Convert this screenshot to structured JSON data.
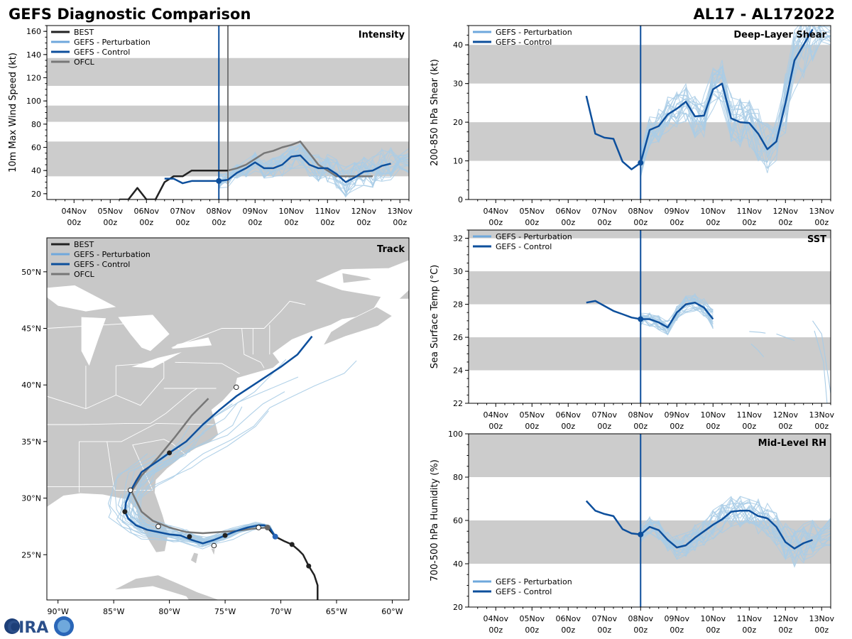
{
  "figure": {
    "title_left": "GEFS Diagnostic Comparison",
    "title_right": "AL17 - AL172022",
    "logo_text": "CIRA",
    "date_ticks": [
      {
        "day": "04Nov",
        "hour": "00z"
      },
      {
        "day": "05Nov",
        "hour": "00z"
      },
      {
        "day": "06Nov",
        "hour": "00z"
      },
      {
        "day": "07Nov",
        "hour": "00z"
      },
      {
        "day": "08Nov",
        "hour": "00z"
      },
      {
        "day": "09Nov",
        "hour": "00z"
      },
      {
        "day": "10Nov",
        "hour": "00z"
      },
      {
        "day": "11Nov",
        "hour": "00z"
      },
      {
        "day": "12Nov",
        "hour": "00z"
      },
      {
        "day": "13Nov",
        "hour": "00z"
      }
    ]
  },
  "chart_data": [
    {
      "id": "intensity",
      "type": "line",
      "title": "Intensity",
      "ylabel": "10m Max Wind Speed (kt)",
      "xlabel": "",
      "x_units": "days since 04Nov 00z",
      "xlim": [
        -0.75,
        9.25
      ],
      "ylim": [
        15,
        165
      ],
      "yticks": [
        20,
        40,
        60,
        80,
        100,
        120,
        140,
        160
      ],
      "bands": [
        [
          35,
          65
        ],
        [
          82,
          96
        ],
        [
          113,
          137
        ]
      ],
      "init_line_x": 4.0,
      "ofcl_line_x": 4.25,
      "legend": [
        "BEST",
        "GEFS - Perturbation",
        "GEFS - Control",
        "OFCL"
      ],
      "series": [
        {
          "name": "BEST",
          "color": "#222222",
          "x": [
            1.25,
            1.5,
            1.75,
            2,
            2.25,
            2.5,
            2.75,
            3,
            3.25,
            3.5,
            3.75,
            4,
            4.25
          ],
          "y": [
            15,
            15,
            25,
            15,
            15,
            30,
            35,
            35,
            40,
            40,
            40,
            40,
            40
          ]
        },
        {
          "name": "GEFS - Control",
          "color": "#0d4f9c",
          "x": [
            2.5,
            2.75,
            3,
            3.25,
            3.5,
            3.75,
            4,
            4.25,
            4.5,
            4.75,
            5,
            5.25,
            5.5,
            5.75,
            6,
            6.25,
            6.5,
            6.75,
            7,
            7.25,
            7.5,
            7.75,
            8,
            8.25,
            8.5,
            8.75
          ],
          "y": [
            33,
            33,
            29,
            31,
            31,
            31,
            31,
            32,
            38,
            42,
            47,
            42,
            42,
            45,
            52,
            53,
            45,
            42,
            42,
            37,
            30,
            34,
            39,
            40,
            44,
            46
          ]
        },
        {
          "name": "OFCL",
          "color": "#777777",
          "x": [
            4,
            4.25,
            4.5,
            4.75,
            5,
            5.25,
            5.5,
            5.75,
            6,
            6.25,
            6.5,
            6.75,
            7,
            7.25,
            7.5,
            7.75,
            8,
            8.25
          ],
          "y": [
            40,
            40,
            42,
            45,
            50,
            55,
            57,
            60,
            62,
            65,
            55,
            45,
            40,
            35,
            35,
            35,
            35,
            35
          ]
        }
      ]
    },
    {
      "id": "shear",
      "type": "line",
      "title": "Deep-Layer Shear",
      "ylabel": "200-850 hPa Shear (kt)",
      "xlabel": "",
      "x_units": "days since 04Nov 00z",
      "xlim": [
        -0.75,
        9.25
      ],
      "ylim": [
        0,
        45
      ],
      "yticks": [
        0,
        10,
        20,
        30,
        40
      ],
      "bands": [
        [
          10,
          20
        ],
        [
          30,
          40
        ]
      ],
      "init_line_x": 4.0,
      "legend": [
        "GEFS - Perturbation",
        "GEFS - Control"
      ],
      "series": [
        {
          "name": "GEFS - Control",
          "color": "#0d4f9c",
          "x": [
            2.5,
            2.75,
            3,
            3.25,
            3.5,
            3.75,
            4,
            4.25,
            4.5,
            4.75,
            5,
            5.25,
            5.5,
            5.75,
            6,
            6.25,
            6.5,
            6.75,
            7,
            7.25,
            7.5,
            7.75,
            8,
            8.25,
            8.5,
            8.75
          ],
          "y": [
            26.8,
            17,
            16,
            15.7,
            9.8,
            7.8,
            9.5,
            18,
            19,
            22,
            23.5,
            25.3,
            21.5,
            21.7,
            28.5,
            30,
            21,
            20,
            19.8,
            17,
            13,
            15,
            25,
            36,
            40,
            44
          ]
        }
      ]
    },
    {
      "id": "sst",
      "type": "line",
      "title": "SST",
      "ylabel": "Sea Surface Temp (°C)",
      "xlabel": "",
      "x_units": "days since 04Nov 00z",
      "xlim": [
        -0.75,
        9.25
      ],
      "ylim": [
        22,
        32.5
      ],
      "yticks": [
        22,
        24,
        26,
        28,
        30,
        32
      ],
      "bands": [
        [
          24,
          26
        ],
        [
          28,
          30
        ],
        [
          32,
          32.5
        ]
      ],
      "init_line_x": 4.0,
      "legend": [
        "GEFS - Perturbation",
        "GEFS - Control"
      ],
      "series": [
        {
          "name": "GEFS - Control",
          "color": "#0d4f9c",
          "x": [
            2.5,
            2.75,
            3,
            3.25,
            3.5,
            3.75,
            4,
            4.25,
            4.5,
            4.75,
            5,
            5.25,
            5.5,
            5.75,
            6
          ],
          "y": [
            28.1,
            28.2,
            27.9,
            27.6,
            27.4,
            27.2,
            27.1,
            27.1,
            26.9,
            26.6,
            27.5,
            28,
            28.1,
            27.8,
            27.1
          ]
        }
      ]
    },
    {
      "id": "rh",
      "type": "line",
      "title": "Mid-Level RH",
      "ylabel": "700-500 hPa Humidity (%)",
      "xlabel": "",
      "x_units": "days since 04Nov 00z",
      "xlim": [
        -0.75,
        9.25
      ],
      "ylim": [
        20,
        100
      ],
      "yticks": [
        20,
        40,
        60,
        80,
        100
      ],
      "bands": [
        [
          40,
          60
        ],
        [
          80,
          100
        ]
      ],
      "init_line_x": 4.0,
      "legend": [
        "GEFS - Perturbation",
        "GEFS - Control"
      ],
      "series": [
        {
          "name": "GEFS - Control",
          "color": "#0d4f9c",
          "x": [
            2.5,
            2.75,
            3,
            3.25,
            3.5,
            3.75,
            4,
            4.25,
            4.5,
            4.75,
            5,
            5.25,
            5.5,
            5.75,
            6,
            6.25,
            6.5,
            6.75,
            7,
            7.25,
            7.5,
            7.75,
            8,
            8.25,
            8.5,
            8.75
          ],
          "y": [
            69,
            64.5,
            63,
            62,
            56,
            54,
            53.5,
            57,
            55.5,
            51,
            47.5,
            48.5,
            52,
            55,
            58,
            60.5,
            64,
            64.5,
            64.5,
            62,
            61,
            57,
            50,
            47,
            49.5,
            51
          ]
        }
      ]
    },
    {
      "id": "track",
      "type": "scatter",
      "title": "Track",
      "xlabel": "",
      "ylabel": "",
      "x_units": "degrees longitude (negative = W)",
      "y_units": "degrees latitude (N)",
      "xlim": [
        -91,
        -58.5
      ],
      "ylim": [
        21,
        53
      ],
      "xtick_labels": [
        "90°W",
        "85°W",
        "80°W",
        "75°W",
        "70°W",
        "65°W",
        "60°W"
      ],
      "xtick_values": [
        -90,
        -85,
        -80,
        -75,
        -70,
        -65,
        -60
      ],
      "ytick_labels": [
        "25°N",
        "30°N",
        "35°N",
        "40°N",
        "45°N",
        "50°N"
      ],
      "ytick_values": [
        25,
        30,
        35,
        40,
        45,
        50
      ],
      "legend": [
        "BEST",
        "GEFS - Perturbation",
        "GEFS - Control",
        "OFCL"
      ],
      "series": [
        {
          "name": "BEST",
          "color": "#222222",
          "lon": [
            -66.7,
            -66.7,
            -67,
            -67.5,
            -68,
            -68.4,
            -69,
            -69.7,
            -70.5,
            -71.2
          ],
          "lat": [
            20.8,
            22.3,
            23.2,
            24,
            25,
            25.4,
            25.9,
            26.2,
            26.6,
            27.4
          ]
        },
        {
          "name": "GEFS - Control",
          "color": "#0d4f9c",
          "lon": [
            -70.5,
            -71,
            -71.5,
            -72,
            -73,
            -74,
            -75,
            -76,
            -77,
            -78,
            -79,
            -80,
            -81,
            -82,
            -83,
            -83.7,
            -84,
            -83.9,
            -83.5,
            -83,
            -82.5,
            -81,
            -80,
            -78.5,
            -77,
            -75.5,
            -74,
            -72,
            -70,
            -68.5,
            -67.2
          ],
          "lat": [
            26.6,
            27.4,
            27.6,
            27.6,
            27.4,
            27.1,
            26.7,
            26.3,
            26.0,
            26.3,
            26.7,
            26.8,
            27.0,
            27.2,
            27.6,
            28.2,
            28.8,
            29.6,
            30.6,
            31.5,
            32.3,
            33.3,
            34,
            35,
            36.5,
            37.8,
            39,
            40.3,
            41.6,
            42.7,
            44.3
          ]
        },
        {
          "name": "OFCL",
          "color": "#777777",
          "lon": [
            -71.2,
            -72.5,
            -74,
            -75.5,
            -77,
            -78.5,
            -80,
            -81.5,
            -82.5,
            -83,
            -83.4,
            -82.5,
            -81,
            -79.5,
            -78,
            -76.5
          ],
          "lat": [
            27.4,
            27.3,
            27.1,
            27,
            26.9,
            27,
            27.4,
            28,
            28.8,
            29.8,
            30.6,
            32,
            33.6,
            35.4,
            37.3,
            38.8
          ]
        },
        {
          "name": "BEST points",
          "color": "#222222",
          "lon": [
            -66.7,
            -67.5,
            -69,
            -71.2,
            -75,
            -78.2,
            -84,
            -80
          ],
          "lat": [
            20.8,
            24,
            25.9,
            27.4,
            26.7,
            26.6,
            28.8,
            34
          ]
        },
        {
          "name": "Control points",
          "color": "#ffffff",
          "lon": [
            -72,
            -76,
            -81,
            -83.5,
            -74
          ],
          "lat": [
            27.4,
            25.8,
            27.5,
            30.7,
            39.8
          ]
        }
      ]
    }
  ]
}
